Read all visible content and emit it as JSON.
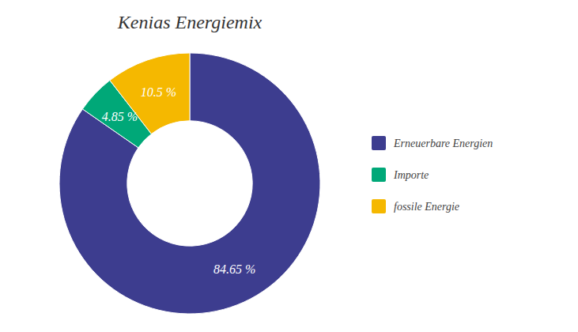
{
  "chart_data": {
    "type": "donut",
    "title": "Kenias Energiemix",
    "categories": [
      "Erneuerbare Energien",
      "Importe",
      "fossile Energie"
    ],
    "values": [
      84.65,
      4.85,
      10.5
    ],
    "value_labels": [
      "84.65 %",
      "4.85 %",
      "10.5 %"
    ],
    "colors": [
      "#3d3d8f",
      "#00a878",
      "#f5b800"
    ],
    "data_labels": true,
    "legend": "right"
  }
}
